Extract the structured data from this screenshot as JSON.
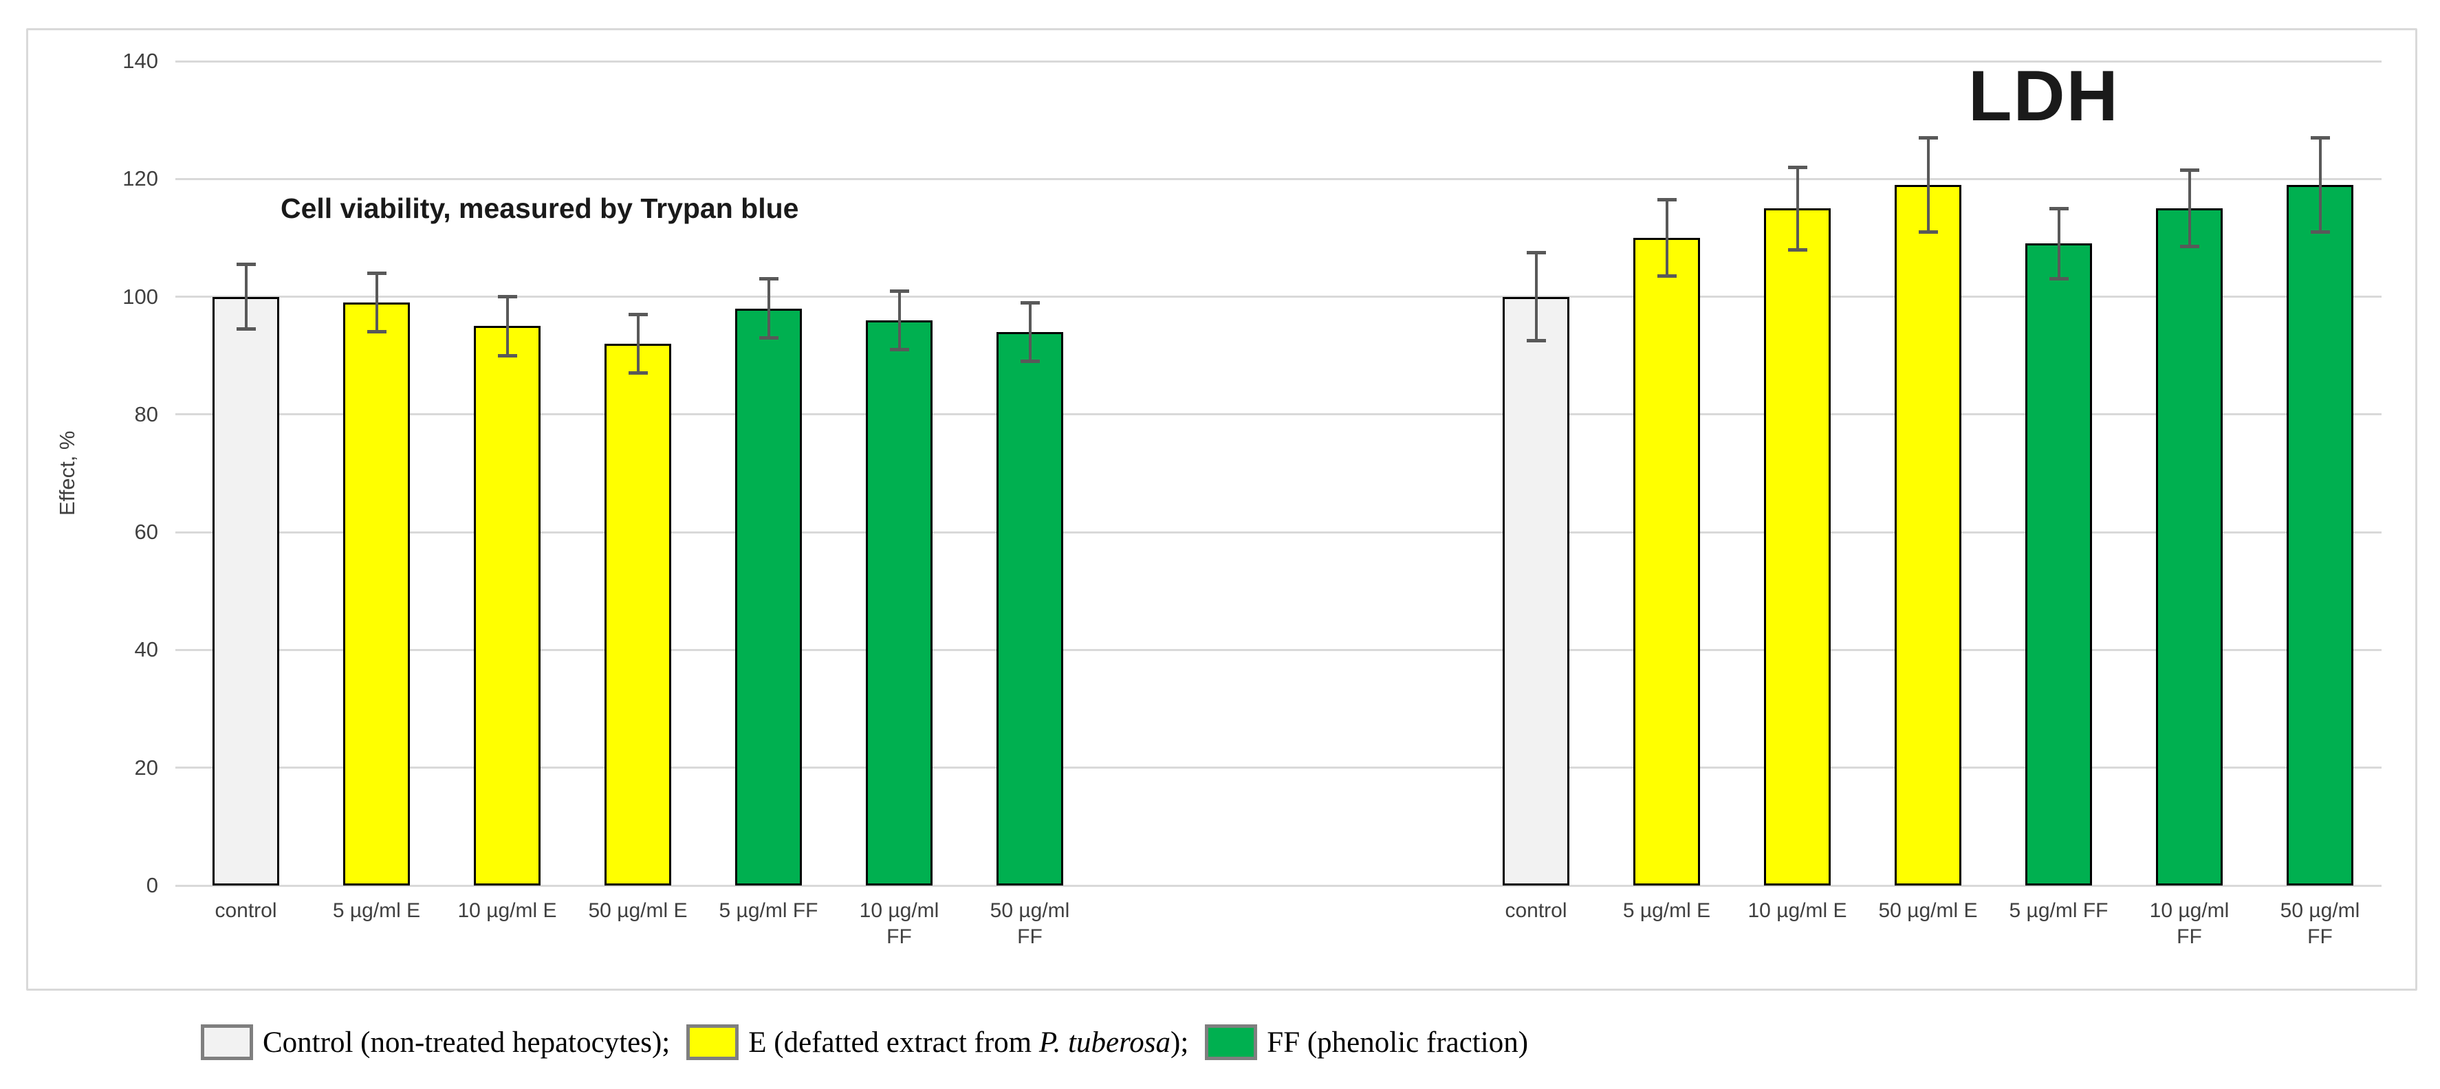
{
  "chart_data": {
    "type": "bar",
    "ylabel": "Effect, %",
    "ylim": [
      0,
      140
    ],
    "yticks": [
      0,
      20,
      40,
      60,
      80,
      100,
      120,
      140
    ],
    "grid": true,
    "legend_position": "bottom-left",
    "colors": {
      "control": "#f2f2f2",
      "E": "#ffff00",
      "FF": "#00b050"
    },
    "bar_border_color": "#000000",
    "error_bar_color": "#595959",
    "groups": [
      {
        "title": "Cell viability, measured by Trypan blue",
        "categories": [
          "control",
          "5 µg/ml E",
          "10 µg/ml E",
          "50 µg/ml E",
          "5 µg/ml FF",
          "10 µg/ml\nFF",
          "50 µg/ml\nFF"
        ],
        "series_key": [
          "control",
          "E",
          "E",
          "E",
          "FF",
          "FF",
          "FF"
        ],
        "values": [
          100,
          99,
          95,
          92,
          98,
          96,
          94
        ],
        "errors": [
          5.5,
          5,
          5,
          5,
          5,
          5,
          5
        ]
      },
      {
        "title": "LDH",
        "categories": [
          "control",
          "5 µg/ml E",
          "10 µg/ml E",
          "50 µg/ml E",
          "5 µg/ml FF",
          "10 µg/ml\nFF",
          "50 µg/ml\nFF"
        ],
        "series_key": [
          "control",
          "E",
          "E",
          "E",
          "FF",
          "FF",
          "FF"
        ],
        "values": [
          100,
          110,
          115,
          119,
          109,
          115,
          119
        ],
        "errors": [
          7.5,
          6.5,
          7,
          8,
          6,
          6.5,
          8
        ]
      }
    ],
    "legend": [
      {
        "color_key": "control",
        "parts": [
          {
            "text": "Control (non-treated hepatocytes); ",
            "italic": false
          }
        ]
      },
      {
        "color_key": "E",
        "parts": [
          {
            "text": "E (defatted extract from ",
            "italic": false
          },
          {
            "text": "P. tuberosa",
            "italic": true
          },
          {
            "text": ");",
            "italic": false
          }
        ]
      },
      {
        "color_key": "FF",
        "parts": [
          {
            "text": "FF (phenolic fraction)",
            "italic": false
          }
        ]
      }
    ]
  }
}
